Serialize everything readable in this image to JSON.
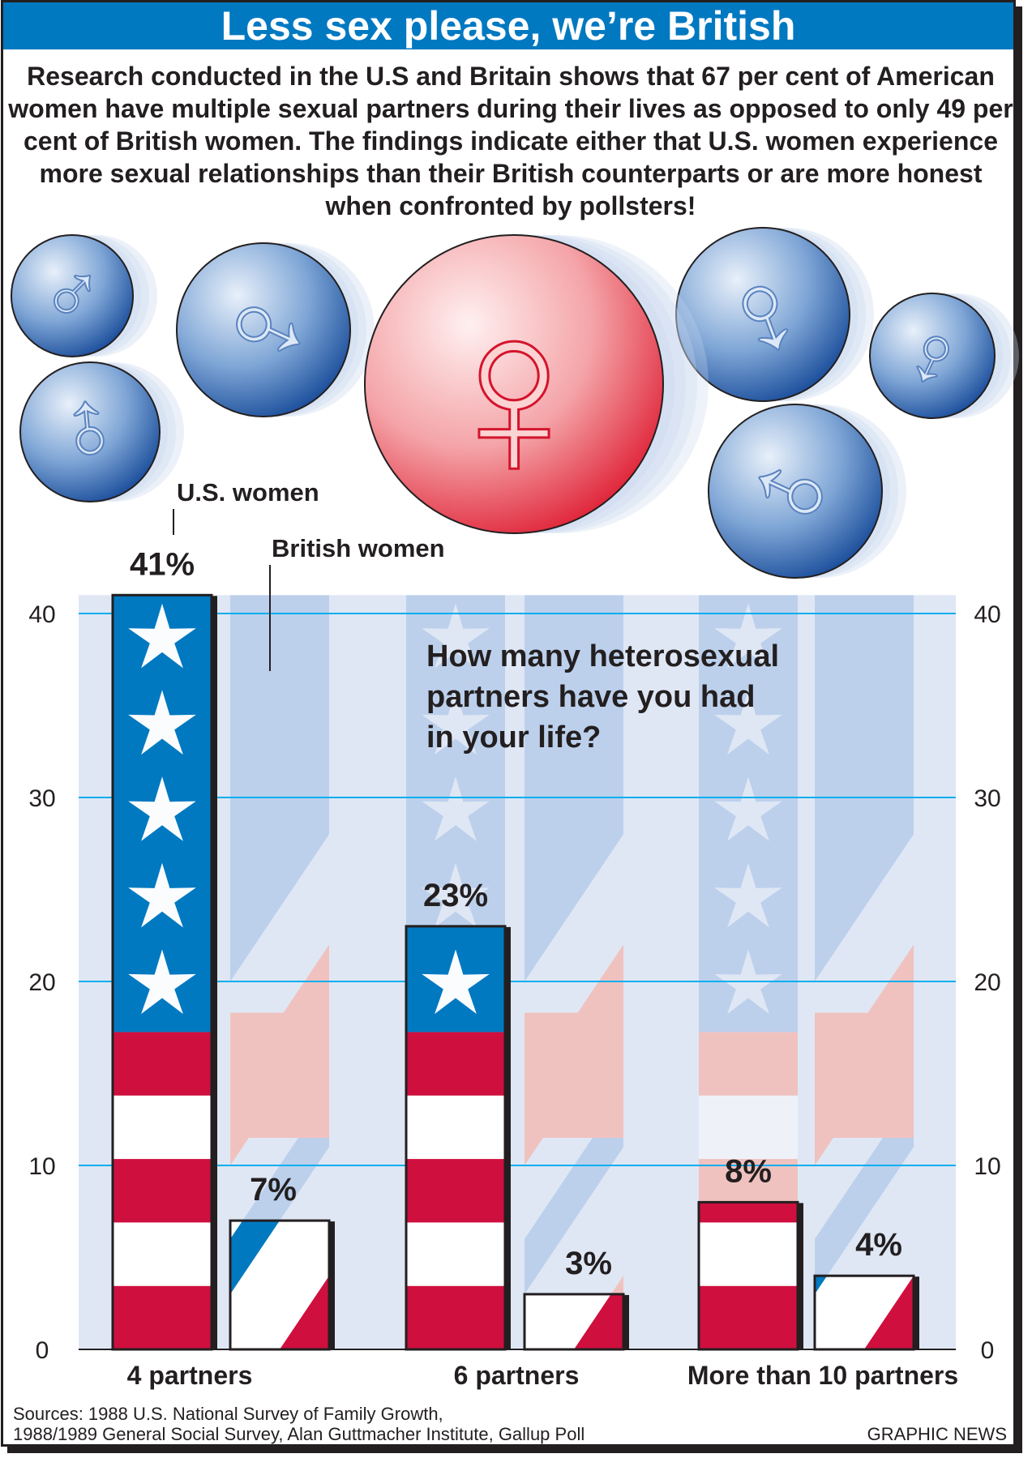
{
  "title": "Less sex please, we’re British",
  "intro": "Research conducted in the U.S and Britain shows that 67 per cent of American women have multiple sexual partners during their lives as opposed to only 49 per cent of British women. The findings indicate either that U.S. women experience more sexual relationships than their British counterparts or are more honest when confronted by pollsters!",
  "question": [
    "How many heterosexual",
    "partners have you had",
    "in your life?"
  ],
  "sources": [
    "Sources: 1988 U.S. National Survey of Family Growth,",
    "1988/1989 General Social Survey, Alan Guttmacher Institute, Gallup Poll"
  ],
  "credit": "GRAPHIC NEWS",
  "colors": {
    "us_blue": "#0079c1",
    "us_red": "#cf0f3e",
    "title_blue": "#0079c1",
    "grid": "#00aeef"
  },
  "chart_data": {
    "type": "bar",
    "title": "How many heterosexual partners have you had in your life?",
    "categories": [
      "4 partners",
      "6 partners",
      "More than 10 partners"
    ],
    "series": [
      {
        "name": "U.S. women",
        "values": [
          41,
          23,
          8
        ],
        "labels": [
          "41%",
          "23%",
          "8%"
        ]
      },
      {
        "name": "British women",
        "values": [
          7,
          3,
          4
        ],
        "labels": [
          "7%",
          "3%",
          "4%"
        ]
      }
    ],
    "yticks": [
      0,
      10,
      20,
      30,
      40
    ],
    "ylim": [
      0,
      40
    ],
    "grid": true,
    "ylabel": "",
    "xlabel": ""
  }
}
